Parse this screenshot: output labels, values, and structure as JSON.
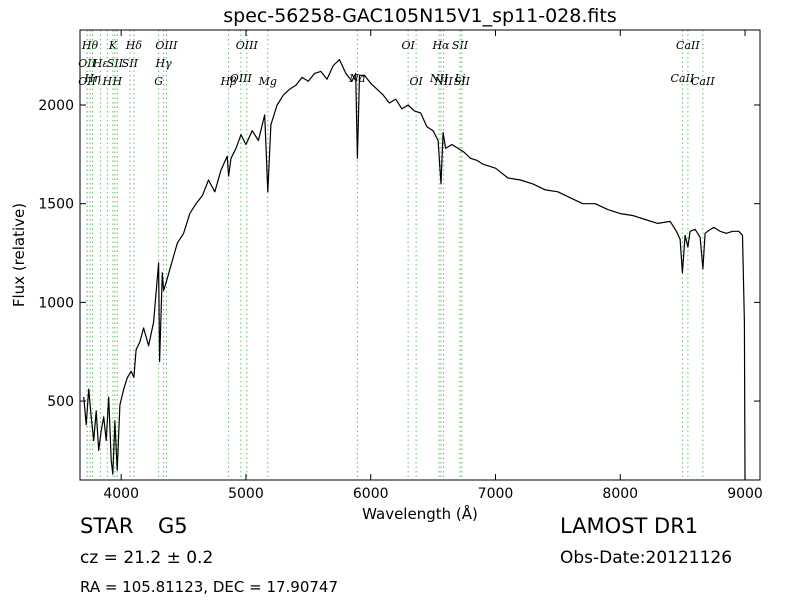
{
  "title": "spec-56258-GAC105N15V1_sp11-028.fits",
  "info": {
    "object_class": "STAR",
    "subclass": "G5",
    "cz": "cz = 21.2  ± 0.2",
    "radec": "RA = 105.81123, DEC = 17.90747",
    "survey": "LAMOST DR1",
    "obs_date": "Obs-Date:20121126"
  },
  "colors": {
    "line": "#000000",
    "marker": "#66bb66",
    "axis": "#000000"
  },
  "chart_data": {
    "type": "line",
    "title": "spec-56258-GAC105N15V1_sp11-028.fits",
    "xlabel": "Wavelength (Å)",
    "ylabel": "Flux (relative)",
    "xlim": [
      3670,
      9120
    ],
    "ylim": [
      100,
      2380
    ],
    "xticks": [
      4000,
      5000,
      6000,
      7000,
      8000,
      9000
    ],
    "yticks": [
      500,
      1000,
      1500,
      2000
    ],
    "grid": false,
    "series": [
      {
        "x": [
          3700,
          3720,
          3740,
          3760,
          3780,
          3800,
          3820,
          3840,
          3860,
          3880,
          3900,
          3920,
          3933,
          3950,
          3968,
          3990,
          4020,
          4050,
          4080,
          4102,
          4120,
          4150,
          4180,
          4220,
          4260,
          4300,
          4308,
          4330,
          4340,
          4360,
          4400,
          4450,
          4500,
          4550,
          4600,
          4650,
          4700,
          4750,
          4800,
          4850,
          4861,
          4880,
          4920,
          4960,
          5000,
          5050,
          5100,
          5150,
          5175,
          5200,
          5250,
          5300,
          5350,
          5400,
          5450,
          5500,
          5550,
          5600,
          5650,
          5700,
          5750,
          5800,
          5850,
          5880,
          5893,
          5910,
          5950,
          6000,
          6050,
          6100,
          6150,
          6200,
          6250,
          6300,
          6350,
          6400,
          6450,
          6500,
          6540,
          6563,
          6580,
          6600,
          6650,
          6700,
          6750,
          6800,
          6850,
          6900,
          7000,
          7100,
          7200,
          7300,
          7400,
          7500,
          7600,
          7700,
          7800,
          7900,
          8000,
          8100,
          8200,
          8300,
          8400,
          8450,
          8480,
          8498,
          8520,
          8542,
          8560,
          8600,
          8640,
          8662,
          8680,
          8700,
          8750,
          8800,
          8850,
          8900,
          8950,
          8980,
          8995,
          9000
        ],
        "values": [
          520,
          380,
          560,
          420,
          300,
          450,
          250,
          350,
          420,
          300,
          520,
          200,
          130,
          400,
          150,
          480,
          560,
          620,
          650,
          620,
          760,
          800,
          870,
          780,
          900,
          1200,
          700,
          1150,
          1060,
          1100,
          1190,
          1300,
          1350,
          1450,
          1500,
          1540,
          1620,
          1560,
          1670,
          1740,
          1640,
          1730,
          1780,
          1850,
          1800,
          1870,
          1820,
          1950,
          1560,
          1900,
          2000,
          2050,
          2080,
          2100,
          2140,
          2120,
          2160,
          2170,
          2130,
          2200,
          2230,
          2160,
          2120,
          2160,
          1730,
          2150,
          2150,
          2110,
          2080,
          2050,
          2010,
          2030,
          1980,
          2000,
          1970,
          1960,
          1890,
          1870,
          1820,
          1600,
          1860,
          1780,
          1800,
          1780,
          1760,
          1730,
          1720,
          1700,
          1680,
          1630,
          1620,
          1600,
          1570,
          1560,
          1530,
          1500,
          1500,
          1470,
          1450,
          1440,
          1420,
          1400,
          1410,
          1360,
          1320,
          1150,
          1340,
          1280,
          1360,
          1370,
          1330,
          1170,
          1350,
          1360,
          1380,
          1360,
          1350,
          1360,
          1360,
          1340,
          900,
          100
        ]
      }
    ],
    "line_markers": [
      {
        "x": 3727,
        "label": "OII",
        "row": 2
      },
      {
        "x": 3727,
        "label": "OII",
        "row": 4
      },
      {
        "x": 3750,
        "label": "Hθ",
        "row": 1
      },
      {
        "x": 3770,
        "label": "Hη",
        "row": 3
      },
      {
        "x": 3835,
        "label": "Hε",
        "row": 2
      },
      {
        "x": 3889,
        "label": "H",
        "row": 4
      },
      {
        "x": 3934,
        "label": "K",
        "row": 1
      },
      {
        "x": 3950,
        "label": "SII",
        "row": 2
      },
      {
        "x": 3969,
        "label": "H",
        "row": 4
      },
      {
        "x": 4070,
        "label": "SII",
        "row": 2
      },
      {
        "x": 4102,
        "label": "Hδ",
        "row": 1
      },
      {
        "x": 4300,
        "label": "G",
        "row": 4
      },
      {
        "x": 4340,
        "label": "Hγ",
        "row": 2
      },
      {
        "x": 4363,
        "label": "OIII",
        "row": 1
      },
      {
        "x": 4861,
        "label": "Hβ",
        "row": 4
      },
      {
        "x": 4959,
        "label": "OIII",
        "row": 3
      },
      {
        "x": 5007,
        "label": "OIII",
        "row": 1
      },
      {
        "x": 5175,
        "label": "Mg",
        "row": 4
      },
      {
        "x": 5893,
        "label": "Na",
        "row": 3
      },
      {
        "x": 6300,
        "label": "OI",
        "row": 1
      },
      {
        "x": 6364,
        "label": "OI",
        "row": 4
      },
      {
        "x": 6548,
        "label": "NII",
        "row": 3
      },
      {
        "x": 6563,
        "label": "Hα",
        "row": 1
      },
      {
        "x": 6584,
        "label": "NII",
        "row": 4
      },
      {
        "x": 6716,
        "label": "SII",
        "row": 1
      },
      {
        "x": 6716,
        "label": "Li",
        "row": 3
      },
      {
        "x": 6731,
        "label": "SII",
        "row": 4
      },
      {
        "x": 8498,
        "label": "CaII",
        "row": 3
      },
      {
        "x": 8542,
        "label": "CaII",
        "row": 1
      },
      {
        "x": 8662,
        "label": "CaII",
        "row": 4
      }
    ]
  }
}
